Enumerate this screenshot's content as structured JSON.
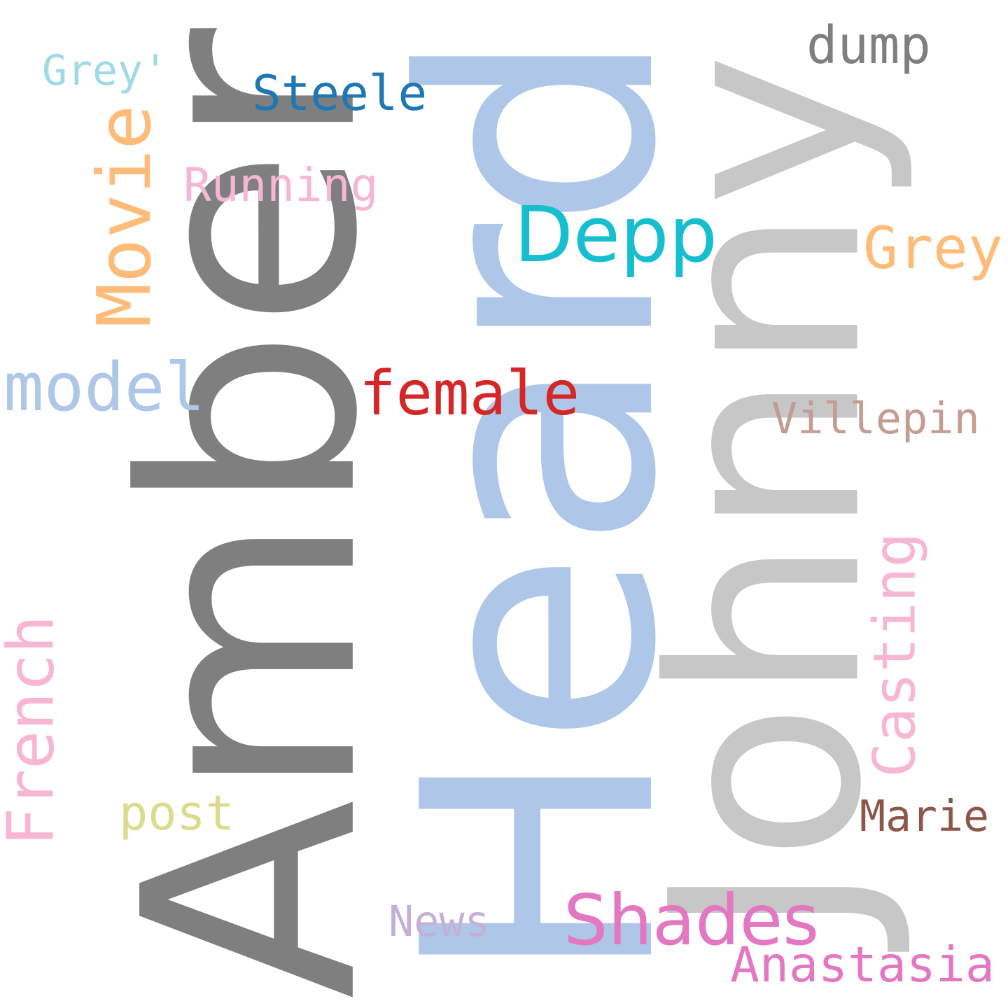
{
  "words": [
    {
      "key": "amber",
      "text": "Amber",
      "color": "#7f7f7f",
      "font": "sans",
      "vertical": true
    },
    {
      "key": "heard",
      "text": "Heard",
      "color": "#aec7e8",
      "font": "sans",
      "vertical": true
    },
    {
      "key": "johnny",
      "text": "Johnny",
      "color": "#c7c7c7",
      "font": "sans",
      "vertical": true
    },
    {
      "key": "depp",
      "text": "Depp",
      "color": "#17becf",
      "font": "sans",
      "vertical": false
    },
    {
      "key": "shades",
      "text": "Shades",
      "color": "#e377c2",
      "font": "sans",
      "vertical": false
    },
    {
      "key": "movie",
      "text": "Movie",
      "color": "#ffbb78",
      "font": "mono",
      "vertical": true
    },
    {
      "key": "female",
      "text": "female",
      "color": "#d62728",
      "font": "mono",
      "vertical": false
    },
    {
      "key": "model",
      "text": "model",
      "color": "#aec7e8",
      "font": "mono",
      "vertical": false
    },
    {
      "key": "french",
      "text": "French",
      "color": "#f7b6d2",
      "font": "mono",
      "vertical": true
    },
    {
      "key": "casting",
      "text": "Casting",
      "color": "#f7b6d2",
      "font": "mono",
      "vertical": true
    },
    {
      "key": "steele",
      "text": "Steele",
      "color": "#1f77b4",
      "font": "mono",
      "vertical": false
    },
    {
      "key": "dump",
      "text": "dump",
      "color": "#7f7f7f",
      "font": "mono",
      "vertical": false
    },
    {
      "key": "grey",
      "text": "Grey",
      "color": "#ffbb78",
      "font": "mono",
      "vertical": false
    },
    {
      "key": "running",
      "text": "Running",
      "color": "#f7b6d2",
      "font": "mono",
      "vertical": false
    },
    {
      "key": "anastasia",
      "text": "Anastasia",
      "color": "#e377c2",
      "font": "mono",
      "vertical": false
    },
    {
      "key": "villepin",
      "text": "Villepin",
      "color": "#c49c94",
      "font": "mono",
      "vertical": false
    },
    {
      "key": "post",
      "text": "post",
      "color": "#dbdb8d",
      "font": "mono",
      "vertical": false
    },
    {
      "key": "marie",
      "text": "Marie",
      "color": "#8c564b",
      "font": "mono",
      "vertical": false
    },
    {
      "key": "grey-quote",
      "text": "Grey'",
      "color": "#9edae5",
      "font": "mono",
      "vertical": false
    },
    {
      "key": "news",
      "text": "News",
      "color": "#c5b0d5",
      "font": "mono",
      "vertical": false
    }
  ]
}
